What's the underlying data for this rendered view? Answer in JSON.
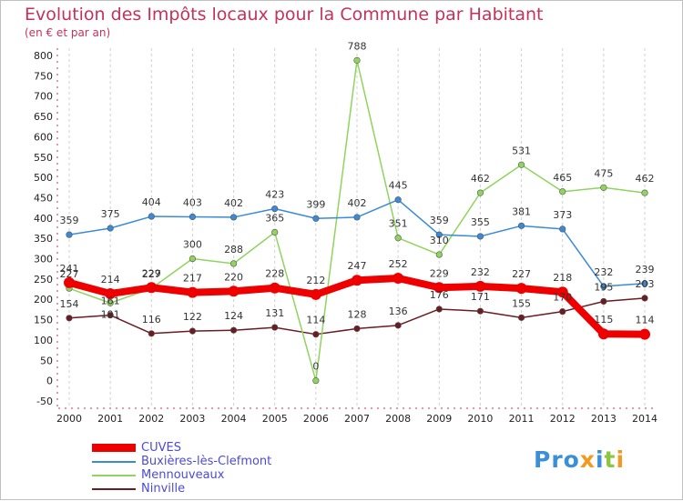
{
  "title": "Evolution des Impôts locaux pour la Commune par Habitant",
  "subtitle": "(en € et par an)",
  "brand": "Proxiti",
  "chart_data": {
    "type": "line",
    "title": "Evolution des Impôts locaux pour la Commune par Habitant",
    "subtitle": "(en € et par an)",
    "xlabel": "",
    "ylabel": "",
    "ylim": [
      -50,
      800
    ],
    "yticks": [
      -50,
      0,
      50,
      100,
      150,
      200,
      250,
      300,
      350,
      400,
      450,
      500,
      550,
      600,
      650,
      700,
      750,
      800
    ],
    "x": [
      "2000",
      "2001",
      "2002",
      "2003",
      "2004",
      "2005",
      "2006",
      "2007",
      "2008",
      "2009",
      "2010",
      "2011",
      "2012",
      "2013",
      "2014"
    ],
    "grid": "vertical dashed",
    "legend_position": "bottom-left",
    "series": [
      {
        "name": "CUVES",
        "color": "#ee0000",
        "values": [
          241,
          214,
          229,
          217,
          220,
          228,
          212,
          247,
          252,
          229,
          232,
          227,
          218,
          115,
          114
        ]
      },
      {
        "name": "Buxières-lès-Clefmont",
        "color": "#3b8ad6",
        "values": [
          359,
          375,
          404,
          403,
          402,
          423,
          399,
          402,
          445,
          359,
          355,
          381,
          373,
          232,
          239
        ]
      },
      {
        "name": "Mennouveaux",
        "color": "#8fd45e",
        "values": [
          227,
          191,
          227,
          300,
          288,
          365,
          0,
          788,
          351,
          310,
          462,
          531,
          465,
          475,
          462
        ]
      },
      {
        "name": "Ninville",
        "color": "#6b1b22",
        "values": [
          154,
          161,
          116,
          122,
          124,
          131,
          114,
          128,
          136,
          176,
          171,
          155,
          170,
          195,
          203
        ]
      }
    ]
  }
}
